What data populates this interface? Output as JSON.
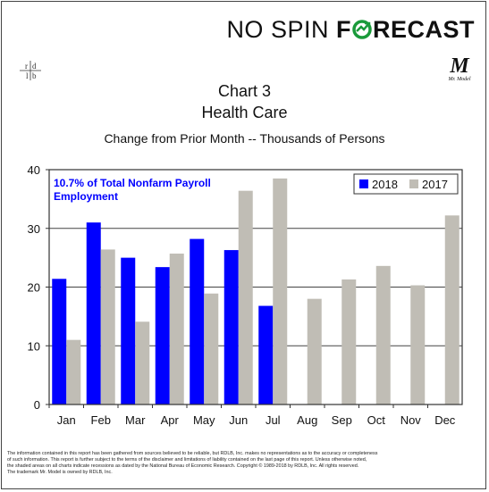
{
  "brand": {
    "part1": "NO SPIN",
    "part2_prefix": "F",
    "part2_suffix": "RECAST"
  },
  "logo_rdlb": "rdlb",
  "logo_mrmodel": {
    "mark": "M",
    "caption": "Mr. Model"
  },
  "colors": {
    "series_2018": "#0000ff",
    "series_2017": "#c0bdb5",
    "note_text": "#0000ff"
  },
  "chart_data": {
    "type": "bar",
    "title": "Chart 3",
    "subtitle": "Health Care",
    "subtitle2": "Change from Prior Month -- Thousands of Persons",
    "categories": [
      "Jan",
      "Feb",
      "Mar",
      "Apr",
      "May",
      "Jun",
      "Jul",
      "Aug",
      "Sep",
      "Oct",
      "Nov",
      "Dec"
    ],
    "series": [
      {
        "name": "2018",
        "values": [
          21.4,
          31.0,
          25.0,
          23.4,
          28.2,
          26.3,
          16.8,
          null,
          null,
          null,
          null,
          null
        ]
      },
      {
        "name": "2017",
        "values": [
          11.0,
          26.4,
          14.1,
          25.7,
          18.9,
          36.4,
          38.5,
          18.0,
          21.3,
          23.6,
          20.3,
          32.2
        ]
      }
    ],
    "ylim": [
      0,
      40
    ],
    "yticks": [
      0,
      10,
      20,
      30,
      40
    ],
    "grid": true,
    "legend_position": "top-right",
    "annotation": [
      "10.7% of Total Nonfarm Payroll",
      "Employment"
    ]
  },
  "footnote": [
    "The information contained in this report has been gathered from sources believed to be reliable, but RDLB, Inc. makes no representations as to the accuracy or completeness",
    "of such information. This report is further subject to the terms of the disclaimer and limitations of liability contained on the last page of this report. Unless otherwise noted,",
    "the shaded areas on all charts indicate recessions as dated by the National Bureau of Economic Research. Copyright © 1989-2018 by RDLB, Inc. All rights reserved.",
    "The trademark Mr. Model is owned by RDLB, Inc."
  ]
}
